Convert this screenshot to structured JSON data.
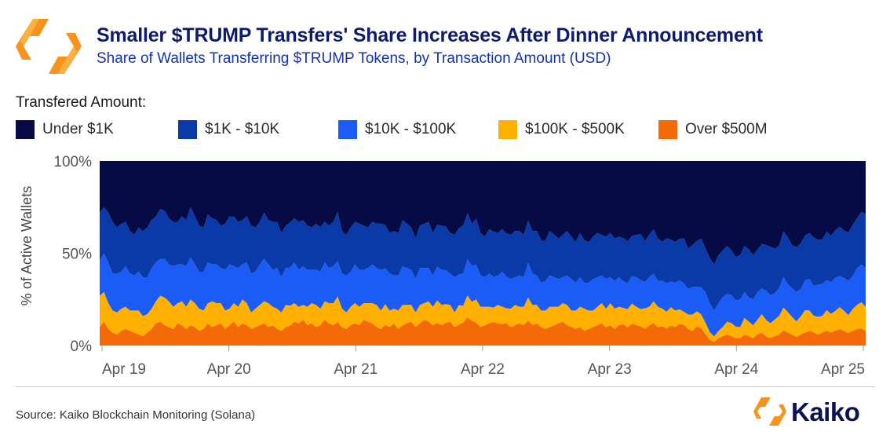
{
  "title": "Smaller $TRUMP Transfers' Share Increases After Dinner Announcement",
  "subtitle": "Share of Wallets Transferring $TRUMP Tokens, by Transaction Amount (USD)",
  "legend_title": "Transfered Amount:",
  "source": "Source: Kaiko Blockchain Monitoring (Solana)",
  "brand": "Kaiko",
  "colors": {
    "under_1k": "#070b45",
    "1k_10k": "#0a3aa8",
    "10k_100k": "#1a5cf5",
    "100k_500k": "#ffb000",
    "over_500m": "#f56a08",
    "logo_primary": "#f7941d",
    "logo_secondary": "#fcb040"
  },
  "chart_data": {
    "type": "area",
    "stacked": true,
    "normalized": true,
    "ylabel": "% of Active Wallets",
    "ylim": [
      0,
      100
    ],
    "yticks": [
      "0%",
      "50%",
      "100%"
    ],
    "xticks": [
      "Apr 19",
      "Apr 20",
      "Apr 21",
      "Apr 22",
      "Apr 23",
      "Apr 24",
      "Apr 25"
    ],
    "x_start": "Apr 19",
    "x_end": "Apr 25",
    "points_per_day": 24,
    "series": [
      {
        "name": "Over $500M",
        "color": "#f56a08",
        "values": [
          10,
          13,
          9,
          7,
          6,
          8,
          9,
          8,
          7,
          6,
          5,
          7,
          9,
          12,
          13,
          11,
          10,
          9,
          12,
          11,
          9,
          11,
          10,
          8,
          9,
          12,
          10,
          11,
          12,
          9,
          11,
          13,
          10,
          12,
          11,
          9,
          10,
          11,
          12,
          10,
          11,
          9,
          8,
          10,
          11,
          13,
          12,
          14,
          11,
          12,
          10,
          11,
          14,
          12,
          11,
          12,
          10,
          9,
          11,
          12,
          11,
          14,
          13,
          12,
          10,
          9,
          11,
          10,
          12,
          9,
          11,
          12,
          13,
          10,
          12,
          14,
          13,
          11,
          12,
          11,
          12,
          13,
          10,
          11,
          12,
          14,
          13,
          12,
          10,
          11,
          12,
          13,
          12,
          11,
          12,
          10,
          11,
          12,
          11,
          13,
          11,
          12,
          10,
          9,
          10,
          11,
          12,
          13,
          11,
          10,
          9,
          10,
          8,
          9,
          10,
          11,
          12,
          10,
          11,
          9,
          11,
          12,
          10,
          12,
          11,
          10,
          9,
          11,
          12,
          10,
          11,
          9,
          11,
          10,
          12,
          11,
          9,
          8,
          10,
          9,
          6,
          3,
          2,
          4,
          5,
          6,
          5,
          4,
          4,
          6,
          5,
          4,
          6,
          7,
          5,
          4,
          5,
          6,
          8,
          7,
          6,
          5,
          6,
          7,
          8,
          7,
          6,
          7,
          8,
          7,
          8,
          9,
          8,
          7,
          8,
          9,
          9,
          8
        ]
      },
      {
        "name": "$100K - $500K",
        "color": "#ffb000",
        "values": [
          17,
          16,
          14,
          12,
          12,
          12,
          12,
          11,
          12,
          13,
          11,
          10,
          11,
          12,
          14,
          15,
          14,
          12,
          11,
          13,
          12,
          14,
          13,
          12,
          10,
          11,
          14,
          12,
          11,
          10,
          9,
          10,
          11,
          13,
          12,
          9,
          10,
          11,
          12,
          13,
          10,
          11,
          10,
          12,
          11,
          10,
          9,
          8,
          10,
          11,
          12,
          9,
          10,
          11,
          12,
          13,
          10,
          9,
          10,
          11,
          10,
          9,
          10,
          11,
          12,
          10,
          11,
          9,
          8,
          10,
          11,
          10,
          9,
          8,
          10,
          9,
          11,
          10,
          12,
          11,
          10,
          9,
          8,
          10,
          9,
          11,
          10,
          12,
          11,
          10,
          9,
          8,
          10,
          9,
          8,
          10,
          11,
          9,
          10,
          12,
          11,
          10,
          9,
          10,
          11,
          10,
          9,
          10,
          11,
          9,
          10,
          11,
          12,
          10,
          9,
          10,
          11,
          10,
          12,
          11,
          10,
          9,
          10,
          11,
          10,
          9,
          11,
          10,
          12,
          11,
          10,
          9,
          10,
          9,
          8,
          7,
          8,
          9,
          8,
          7,
          6,
          4,
          3,
          4,
          5,
          7,
          7,
          6,
          6,
          9,
          8,
          7,
          8,
          10,
          9,
          8,
          9,
          10,
          12,
          11,
          10,
          9,
          10,
          12,
          11,
          9,
          10,
          9,
          11,
          10,
          11,
          12,
          11,
          10,
          12,
          13,
          14,
          13
        ]
      },
      {
        "name": "$10K - $100K",
        "color": "#1a5cf5",
        "values": [
          19,
          21,
          22,
          20,
          21,
          20,
          22,
          20,
          19,
          21,
          21,
          20,
          22,
          21,
          20,
          21,
          20,
          22,
          21,
          20,
          22,
          23,
          21,
          20,
          21,
          22,
          20,
          21,
          19,
          22,
          24,
          20,
          21,
          19,
          22,
          21,
          20,
          22,
          23,
          21,
          20,
          22,
          19,
          20,
          21,
          22,
          20,
          21,
          20,
          18,
          19,
          20,
          21,
          19,
          20,
          18,
          19,
          20,
          19,
          21,
          20,
          18,
          19,
          21,
          20,
          22,
          19,
          20,
          18,
          19,
          21,
          20,
          19,
          18,
          20,
          19,
          18,
          17,
          18,
          19,
          18,
          17,
          19,
          16,
          17,
          18,
          19,
          18,
          17,
          16,
          18,
          17,
          16,
          18,
          17,
          16,
          15,
          17,
          16,
          18,
          17,
          16,
          15,
          16,
          17,
          16,
          15,
          14,
          16,
          17,
          15,
          16,
          14,
          15,
          17,
          16,
          15,
          16,
          14,
          15,
          16,
          15,
          14,
          15,
          16,
          15,
          14,
          16,
          15,
          14,
          16,
          15,
          14,
          15,
          16,
          15,
          14,
          15,
          13,
          14,
          16,
          15,
          14,
          15,
          16,
          15,
          15,
          14,
          15,
          14,
          13,
          14,
          15,
          14,
          16,
          15,
          14,
          15,
          16,
          15,
          16,
          17,
          15,
          16,
          17,
          16,
          18,
          17,
          16,
          17,
          18,
          17,
          18,
          19,
          18,
          20,
          20,
          21
        ]
      },
      {
        "name": "$1K - $10K",
        "color": "#0a3aa8",
        "values": [
          26,
          25,
          27,
          28,
          25,
          26,
          24,
          23,
          22,
          24,
          25,
          27,
          26,
          25,
          27,
          26,
          25,
          24,
          23,
          26,
          25,
          27,
          26,
          25,
          24,
          26,
          25,
          24,
          23,
          25,
          26,
          27,
          25,
          24,
          25,
          26,
          24,
          23,
          25,
          24,
          26,
          25,
          24,
          23,
          25,
          24,
          26,
          25,
          24,
          23,
          25,
          24,
          22,
          23,
          24,
          25,
          23,
          22,
          24,
          23,
          25,
          24,
          22,
          23,
          24,
          25,
          23,
          22,
          24,
          23,
          25,
          24,
          23,
          22,
          23,
          24,
          25,
          23,
          22,
          24,
          23,
          22,
          23,
          24,
          25,
          23,
          22,
          24,
          23,
          22,
          24,
          25,
          23,
          22,
          23,
          24,
          25,
          24,
          23,
          22,
          23,
          24,
          23,
          22,
          24,
          23,
          22,
          23,
          24,
          23,
          22,
          24,
          23,
          22,
          23,
          24,
          22,
          23,
          24,
          23,
          22,
          24,
          23,
          22,
          23,
          24,
          22,
          23,
          24,
          23,
          22,
          24,
          23,
          22,
          23,
          24,
          22,
          23,
          24,
          25,
          23,
          24,
          25,
          26,
          25,
          26,
          24,
          23,
          24,
          25,
          26,
          24,
          23,
          24,
          25,
          26,
          24,
          23,
          24,
          25,
          24,
          26,
          25,
          24,
          25,
          26,
          25,
          24,
          26,
          25,
          26,
          27,
          26,
          27,
          28,
          27,
          28,
          29
        ]
      },
      {
        "name": "Under $1K",
        "color": "#070b45",
        "values": [
          28,
          25,
          28,
          33,
          36,
          34,
          33,
          38,
          40,
          36,
          38,
          36,
          32,
          30,
          26,
          27,
          31,
          33,
          33,
          30,
          32,
          25,
          30,
          35,
          36,
          29,
          31,
          32,
          35,
          34,
          30,
          30,
          33,
          32,
          30,
          35,
          36,
          33,
          28,
          32,
          33,
          33,
          39,
          35,
          34,
          31,
          33,
          32,
          35,
          36,
          34,
          36,
          33,
          35,
          33,
          26,
          38,
          40,
          36,
          33,
          34,
          35,
          36,
          33,
          34,
          34,
          34,
          39,
          38,
          39,
          32,
          34,
          36,
          42,
          35,
          34,
          33,
          39,
          34,
          35,
          35,
          39,
          40,
          35,
          34,
          26,
          33,
          30,
          39,
          41,
          37,
          39,
          39,
          35,
          39,
          40,
          38,
          38,
          40,
          31,
          38,
          38,
          43,
          43,
          38,
          40,
          42,
          40,
          38,
          41,
          44,
          39,
          43,
          44,
          41,
          39,
          40,
          41,
          39,
          42,
          41,
          43,
          44,
          41,
          40,
          38,
          43,
          40,
          37,
          42,
          46,
          41,
          43,
          44,
          43,
          41,
          48,
          46,
          42,
          40,
          46,
          51,
          56,
          51,
          48,
          46,
          48,
          51,
          51,
          46,
          48,
          51,
          48,
          45,
          46,
          46,
          47,
          46,
          37,
          41,
          47,
          50,
          45,
          40,
          39,
          41,
          44,
          42,
          38,
          40,
          38,
          36,
          38,
          40,
          35,
          31,
          27,
          29
        ]
      }
    ]
  }
}
